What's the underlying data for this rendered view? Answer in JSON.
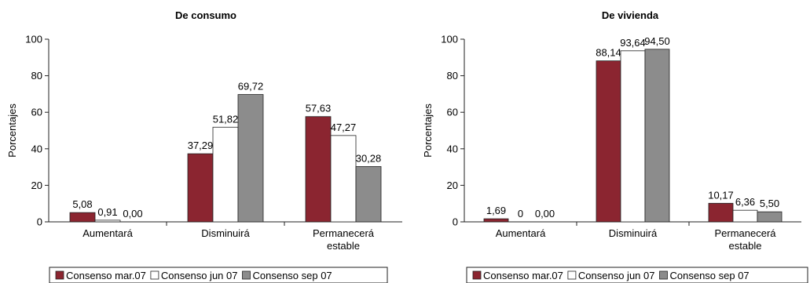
{
  "colors": {
    "series": [
      "#8b2530",
      "#ffffff",
      "#8c8c8c"
    ],
    "axis": "#222222"
  },
  "chart_data": [
    {
      "type": "bar",
      "title": "De consumo",
      "ylabel": "Porcentajes",
      "ylim": [
        0,
        100
      ],
      "yticks": [
        "0",
        "20",
        "40",
        "60",
        "80",
        "100"
      ],
      "categories": [
        [
          "Aumentará"
        ],
        [
          "Disminuirá"
        ],
        [
          "Permanecerá",
          "estable"
        ]
      ],
      "series": [
        {
          "name": "Consenso mar.07",
          "values": [
            5.08,
            37.29,
            57.63
          ],
          "labels": [
            "5,08",
            "37,29",
            "57,63"
          ]
        },
        {
          "name": "Consenso jun 07",
          "values": [
            0.91,
            51.82,
            47.27
          ],
          "labels": [
            "0,91",
            "51,82",
            "47,27"
          ]
        },
        {
          "name": "Consenso sep 07",
          "values": [
            0.0,
            69.72,
            30.28
          ],
          "labels": [
            "0,00",
            "69,72",
            "30,28"
          ]
        }
      ],
      "legend": "bottom",
      "grid": false
    },
    {
      "type": "bar",
      "title": "De vivienda",
      "ylabel": "Porcentajes",
      "ylim": [
        0,
        100
      ],
      "yticks": [
        "0",
        "20",
        "40",
        "60",
        "80",
        "100"
      ],
      "categories": [
        [
          "Aumentará"
        ],
        [
          "Disminuirá"
        ],
        [
          "Permanecerá",
          "estable"
        ]
      ],
      "series": [
        {
          "name": "Consenso mar.07",
          "values": [
            1.69,
            88.14,
            10.17
          ],
          "labels": [
            "1,69",
            "88,14",
            "10,17"
          ]
        },
        {
          "name": "Consenso jun 07",
          "values": [
            0,
            93.64,
            6.36
          ],
          "labels": [
            "0",
            "93,64",
            "6,36"
          ]
        },
        {
          "name": "Consenso sep 07",
          "values": [
            0.0,
            94.5,
            5.5
          ],
          "labels": [
            "0,00",
            "94,50",
            "5,50"
          ]
        }
      ],
      "legend": "bottom",
      "grid": false
    }
  ]
}
